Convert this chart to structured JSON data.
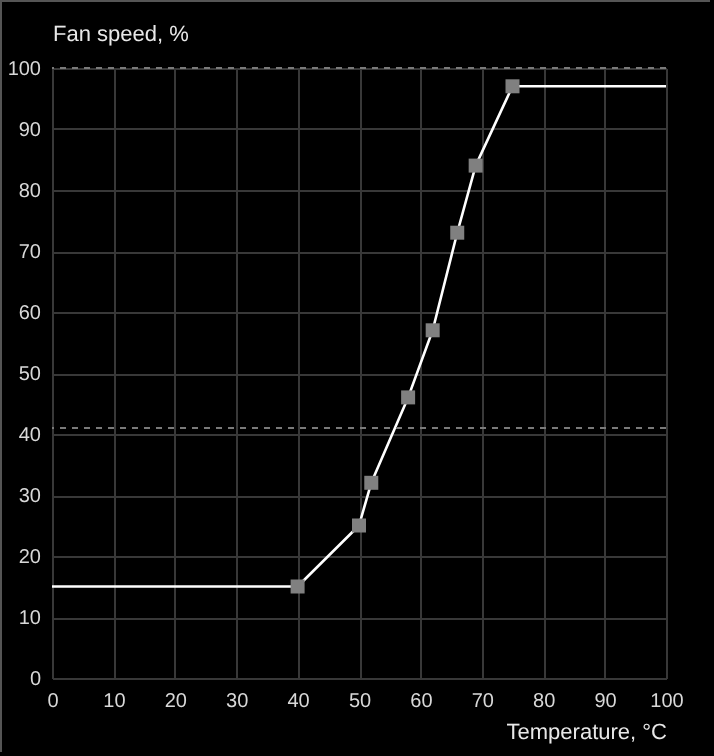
{
  "chart_data": {
    "type": "line",
    "xlabel": "Temperature, °C",
    "ylabel": "Fan speed, %",
    "xlim": [
      0,
      100
    ],
    "xticks": [
      0,
      10,
      20,
      30,
      40,
      50,
      60,
      70,
      80,
      90,
      100
    ],
    "ylim": [
      0,
      100
    ],
    "yticks": [
      0,
      10,
      20,
      30,
      40,
      50,
      60,
      70,
      80,
      90,
      100
    ],
    "grid": true,
    "series": [
      {
        "type": "line",
        "color": "#ffffff",
        "marker": "none",
        "x": [
          0,
          40,
          50,
          52,
          58,
          62,
          66,
          69,
          75,
          100
        ],
        "values": [
          15,
          15,
          25,
          32,
          46,
          57,
          73,
          84,
          97,
          97
        ]
      },
      {
        "type": "scatter",
        "color": "#808080",
        "marker": "square",
        "x": [
          40,
          50,
          52,
          58,
          62,
          66,
          69,
          75
        ],
        "values": [
          15,
          25,
          32,
          46,
          57,
          73,
          84,
          97
        ]
      }
    ],
    "ref_lines": [
      {
        "axis": "y",
        "value": 100,
        "color": "#7a7a7a",
        "line_style": "dashed"
      },
      {
        "axis": "y",
        "value": 41,
        "color": "#7a7a7a",
        "line_style": "dashed"
      }
    ]
  }
}
